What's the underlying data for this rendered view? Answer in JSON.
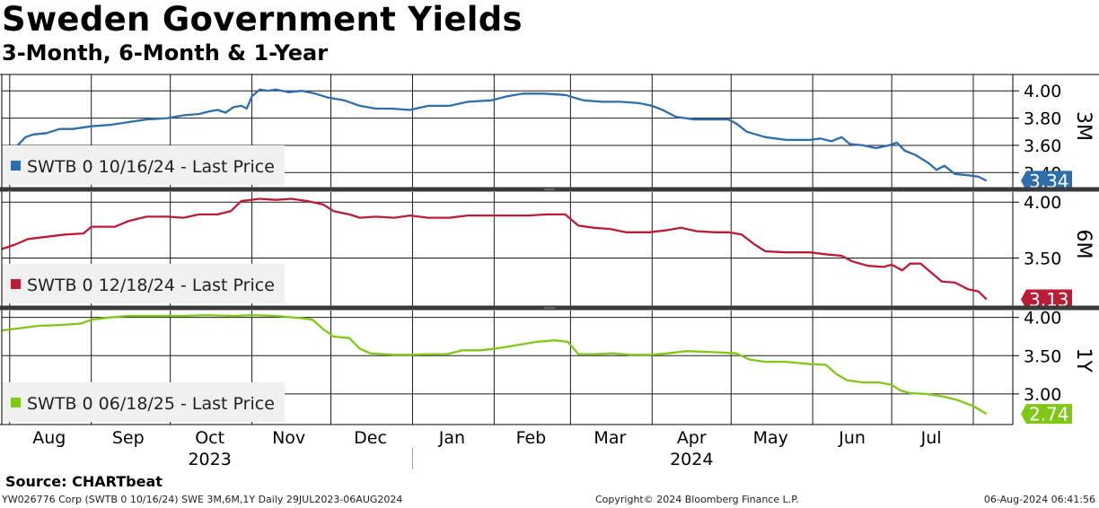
{
  "header": {
    "title": "Sweden Government Yields",
    "subtitle": "3-Month, 6-Month & 1-Year"
  },
  "footer": {
    "source": "Source: CHARTbeat",
    "left": "YW026776 Corp (SWTB 0 10/16/24) SWE 3M,6M,1Y  Daily 29JUL2023-06AUG2024",
    "center": "Copyright© 2024 Bloomberg Finance L.P.",
    "right": "06-Aug-2024 06:41:56"
  },
  "chart_data": [
    {
      "type": "line",
      "panel_label": "3M",
      "series": [
        {
          "name": "SWTB 0 10/16/24 - Last Price",
          "color": "#2e6eaa",
          "last_value": "3.34",
          "points": [
            [
              "2023-07-29",
              3.55
            ],
            [
              "2023-07-31",
              3.57
            ],
            [
              "2023-08-04",
              3.6
            ],
            [
              "2023-08-07",
              3.66
            ],
            [
              "2023-08-10",
              3.68
            ],
            [
              "2023-08-15",
              3.69
            ],
            [
              "2023-08-20",
              3.72
            ],
            [
              "2023-08-25",
              3.72
            ],
            [
              "2023-09-01",
              3.74
            ],
            [
              "2023-09-08",
              3.75
            ],
            [
              "2023-09-15",
              3.77
            ],
            [
              "2023-09-22",
              3.79
            ],
            [
              "2023-09-30",
              3.8
            ],
            [
              "2023-10-06",
              3.82
            ],
            [
              "2023-10-12",
              3.83
            ],
            [
              "2023-10-16",
              3.85
            ],
            [
              "2023-10-19",
              3.86
            ],
            [
              "2023-10-22",
              3.84
            ],
            [
              "2023-10-25",
              3.88
            ],
            [
              "2023-10-28",
              3.89
            ],
            [
              "2023-10-30",
              3.87
            ],
            [
              "2023-11-01",
              3.96
            ],
            [
              "2023-11-04",
              4.01
            ],
            [
              "2023-11-07",
              4.0
            ],
            [
              "2023-11-10",
              4.01
            ],
            [
              "2023-11-15",
              3.99
            ],
            [
              "2023-11-20",
              4.0
            ],
            [
              "2023-11-25",
              3.98
            ],
            [
              "2023-11-30",
              3.95
            ],
            [
              "2023-12-06",
              3.93
            ],
            [
              "2023-12-12",
              3.89
            ],
            [
              "2023-12-18",
              3.87
            ],
            [
              "2023-12-24",
              3.87
            ],
            [
              "2023-12-31",
              3.86
            ],
            [
              "2024-01-07",
              3.89
            ],
            [
              "2024-01-15",
              3.89
            ],
            [
              "2024-01-22",
              3.92
            ],
            [
              "2024-01-31",
              3.93
            ],
            [
              "2024-02-06",
              3.96
            ],
            [
              "2024-02-12",
              3.98
            ],
            [
              "2024-02-20",
              3.98
            ],
            [
              "2024-02-28",
              3.97
            ],
            [
              "2024-03-06",
              3.93
            ],
            [
              "2024-03-13",
              3.92
            ],
            [
              "2024-03-20",
              3.92
            ],
            [
              "2024-03-27",
              3.91
            ],
            [
              "2024-04-01",
              3.89
            ],
            [
              "2024-04-05",
              3.86
            ],
            [
              "2024-04-10",
              3.81
            ],
            [
              "2024-04-17",
              3.79
            ],
            [
              "2024-04-30",
              3.79
            ],
            [
              "2024-05-03",
              3.76
            ],
            [
              "2024-05-07",
              3.7
            ],
            [
              "2024-05-14",
              3.66
            ],
            [
              "2024-05-22",
              3.64
            ],
            [
              "2024-05-31",
              3.64
            ],
            [
              "2024-06-04",
              3.65
            ],
            [
              "2024-06-08",
              3.63
            ],
            [
              "2024-06-12",
              3.66
            ],
            [
              "2024-06-15",
              3.61
            ],
            [
              "2024-06-20",
              3.6
            ],
            [
              "2024-06-25",
              3.58
            ],
            [
              "2024-06-30",
              3.6
            ],
            [
              "2024-07-03",
              3.62
            ],
            [
              "2024-07-06",
              3.56
            ],
            [
              "2024-07-10",
              3.53
            ],
            [
              "2024-07-15",
              3.47
            ],
            [
              "2024-07-18",
              3.42
            ],
            [
              "2024-07-21",
              3.45
            ],
            [
              "2024-07-25",
              3.39
            ],
            [
              "2024-07-30",
              3.38
            ],
            [
              "2024-08-03",
              3.37
            ],
            [
              "2024-08-06",
              3.34
            ]
          ]
        }
      ],
      "y_ticks": [
        "4.00",
        "3.80",
        "3.60",
        "3.40"
      ],
      "ylim": [
        3.29,
        4.12
      ]
    },
    {
      "type": "line",
      "panel_label": "6M",
      "series": [
        {
          "name": "SWTB 0 12/18/24 - Last Price",
          "color": "#bb1d37",
          "last_value": "3.13",
          "points": [
            [
              "2023-07-29",
              3.58
            ],
            [
              "2023-08-03",
              3.62
            ],
            [
              "2023-08-08",
              3.67
            ],
            [
              "2023-08-15",
              3.69
            ],
            [
              "2023-08-22",
              3.71
            ],
            [
              "2023-08-29",
              3.72
            ],
            [
              "2023-09-01",
              3.78
            ],
            [
              "2023-09-10",
              3.78
            ],
            [
              "2023-09-15",
              3.83
            ],
            [
              "2023-09-22",
              3.87
            ],
            [
              "2023-09-30",
              3.87
            ],
            [
              "2023-10-06",
              3.86
            ],
            [
              "2023-10-12",
              3.89
            ],
            [
              "2023-10-19",
              3.89
            ],
            [
              "2023-10-24",
              3.92
            ],
            [
              "2023-10-28",
              4.01
            ],
            [
              "2023-11-04",
              4.03
            ],
            [
              "2023-11-10",
              4.02
            ],
            [
              "2023-11-16",
              4.03
            ],
            [
              "2023-11-22",
              4.01
            ],
            [
              "2023-11-28",
              3.98
            ],
            [
              "2023-12-02",
              3.92
            ],
            [
              "2023-12-08",
              3.89
            ],
            [
              "2023-12-12",
              3.86
            ],
            [
              "2023-12-18",
              3.87
            ],
            [
              "2023-12-25",
              3.86
            ],
            [
              "2023-12-31",
              3.88
            ],
            [
              "2024-01-07",
              3.86
            ],
            [
              "2024-01-15",
              3.86
            ],
            [
              "2024-01-22",
              3.88
            ],
            [
              "2024-01-31",
              3.88
            ],
            [
              "2024-02-07",
              3.88
            ],
            [
              "2024-02-14",
              3.88
            ],
            [
              "2024-02-21",
              3.89
            ],
            [
              "2024-02-28",
              3.89
            ],
            [
              "2024-03-04",
              3.79
            ],
            [
              "2024-03-10",
              3.77
            ],
            [
              "2024-03-16",
              3.76
            ],
            [
              "2024-03-22",
              3.73
            ],
            [
              "2024-03-31",
              3.73
            ],
            [
              "2024-04-07",
              3.75
            ],
            [
              "2024-04-12",
              3.77
            ],
            [
              "2024-04-18",
              3.74
            ],
            [
              "2024-04-25",
              3.73
            ],
            [
              "2024-04-30",
              3.73
            ],
            [
              "2024-05-05",
              3.71
            ],
            [
              "2024-05-10",
              3.62
            ],
            [
              "2024-05-14",
              3.56
            ],
            [
              "2024-05-22",
              3.55
            ],
            [
              "2024-05-31",
              3.55
            ],
            [
              "2024-06-07",
              3.53
            ],
            [
              "2024-06-12",
              3.52
            ],
            [
              "2024-06-16",
              3.47
            ],
            [
              "2024-06-22",
              3.43
            ],
            [
              "2024-06-28",
              3.42
            ],
            [
              "2024-07-01",
              3.44
            ],
            [
              "2024-07-05",
              3.39
            ],
            [
              "2024-07-08",
              3.45
            ],
            [
              "2024-07-12",
              3.45
            ],
            [
              "2024-07-16",
              3.37
            ],
            [
              "2024-07-20",
              3.29
            ],
            [
              "2024-07-25",
              3.28
            ],
            [
              "2024-07-30",
              3.22
            ],
            [
              "2024-08-03",
              3.2
            ],
            [
              "2024-08-06",
              3.13
            ]
          ]
        }
      ],
      "y_ticks": [
        "4.00",
        "3.50"
      ],
      "ylim": [
        3.07,
        4.09
      ]
    },
    {
      "type": "line",
      "panel_label": "1Y",
      "series": [
        {
          "name": "SWTB 0 06/18/25 - Last Price",
          "color": "#80c716",
          "last_value": "2.74",
          "points": [
            [
              "2023-07-29",
              3.83
            ],
            [
              "2023-08-05",
              3.86
            ],
            [
              "2023-08-12",
              3.89
            ],
            [
              "2023-08-20",
              3.9
            ],
            [
              "2023-08-28",
              3.92
            ],
            [
              "2023-09-01",
              3.97
            ],
            [
              "2023-09-08",
              4.0
            ],
            [
              "2023-09-15",
              4.02
            ],
            [
              "2023-09-25",
              4.02
            ],
            [
              "2023-10-05",
              4.02
            ],
            [
              "2023-10-15",
              4.03
            ],
            [
              "2023-10-25",
              4.02
            ],
            [
              "2023-11-01",
              4.03
            ],
            [
              "2023-11-10",
              4.02
            ],
            [
              "2023-11-20",
              3.99
            ],
            [
              "2023-11-24",
              3.97
            ],
            [
              "2023-11-28",
              3.85
            ],
            [
              "2023-12-02",
              3.75
            ],
            [
              "2023-12-08",
              3.73
            ],
            [
              "2023-12-12",
              3.59
            ],
            [
              "2023-12-16",
              3.53
            ],
            [
              "2023-12-25",
              3.51
            ],
            [
              "2023-12-31",
              3.51
            ],
            [
              "2024-01-07",
              3.52
            ],
            [
              "2024-01-14",
              3.52
            ],
            [
              "2024-01-20",
              3.57
            ],
            [
              "2024-01-27",
              3.57
            ],
            [
              "2024-02-03",
              3.6
            ],
            [
              "2024-02-10",
              3.64
            ],
            [
              "2024-02-17",
              3.68
            ],
            [
              "2024-02-24",
              3.7
            ],
            [
              "2024-02-29",
              3.68
            ],
            [
              "2024-03-04",
              3.52
            ],
            [
              "2024-03-10",
              3.52
            ],
            [
              "2024-03-17",
              3.53
            ],
            [
              "2024-03-24",
              3.51
            ],
            [
              "2024-03-31",
              3.51
            ],
            [
              "2024-04-07",
              3.53
            ],
            [
              "2024-04-14",
              3.56
            ],
            [
              "2024-04-21",
              3.55
            ],
            [
              "2024-04-28",
              3.54
            ],
            [
              "2024-05-03",
              3.53
            ],
            [
              "2024-05-08",
              3.45
            ],
            [
              "2024-05-14",
              3.42
            ],
            [
              "2024-05-22",
              3.42
            ],
            [
              "2024-05-31",
              3.39
            ],
            [
              "2024-06-06",
              3.38
            ],
            [
              "2024-06-10",
              3.26
            ],
            [
              "2024-06-14",
              3.18
            ],
            [
              "2024-06-20",
              3.15
            ],
            [
              "2024-06-26",
              3.15
            ],
            [
              "2024-07-01",
              3.12
            ],
            [
              "2024-07-04",
              3.05
            ],
            [
              "2024-07-08",
              3.01
            ],
            [
              "2024-07-14",
              3.0
            ],
            [
              "2024-07-20",
              2.97
            ],
            [
              "2024-07-26",
              2.92
            ],
            [
              "2024-08-01",
              2.84
            ],
            [
              "2024-08-06",
              2.74
            ]
          ]
        }
      ],
      "y_ticks": [
        "4.00",
        "3.50",
        "3.00"
      ],
      "ylim": [
        2.6,
        4.09
      ]
    }
  ],
  "x_axis": {
    "range": [
      "2023-07-29",
      "2024-08-16"
    ],
    "months": [
      {
        "label": "Aug",
        "date": "2023-08-16"
      },
      {
        "label": "Sep",
        "date": "2023-09-15"
      },
      {
        "label": "Oct",
        "date": "2023-10-16"
      },
      {
        "label": "Nov",
        "date": "2023-11-15"
      },
      {
        "label": "Dec",
        "date": "2023-12-16"
      },
      {
        "label": "Jan",
        "date": "2024-01-16"
      },
      {
        "label": "Feb",
        "date": "2024-02-15"
      },
      {
        "label": "Mar",
        "date": "2024-03-16"
      },
      {
        "label": "Apr",
        "date": "2024-04-16"
      },
      {
        "label": "May",
        "date": "2024-05-16"
      },
      {
        "label": "Jun",
        "date": "2024-06-16"
      },
      {
        "label": "Jul",
        "date": "2024-07-16"
      }
    ],
    "years": [
      {
        "label": "2023",
        "date": "2023-10-16"
      },
      {
        "label": "2024",
        "date": "2024-04-16"
      }
    ],
    "year_divider": "2024-01-01",
    "month_boundaries": [
      "2023-08-01",
      "2023-09-01",
      "2023-10-01",
      "2023-11-01",
      "2023-12-01",
      "2024-01-01",
      "2024-02-01",
      "2024-03-01",
      "2024-04-01",
      "2024-05-01",
      "2024-06-01",
      "2024-07-01",
      "2024-08-01"
    ]
  }
}
